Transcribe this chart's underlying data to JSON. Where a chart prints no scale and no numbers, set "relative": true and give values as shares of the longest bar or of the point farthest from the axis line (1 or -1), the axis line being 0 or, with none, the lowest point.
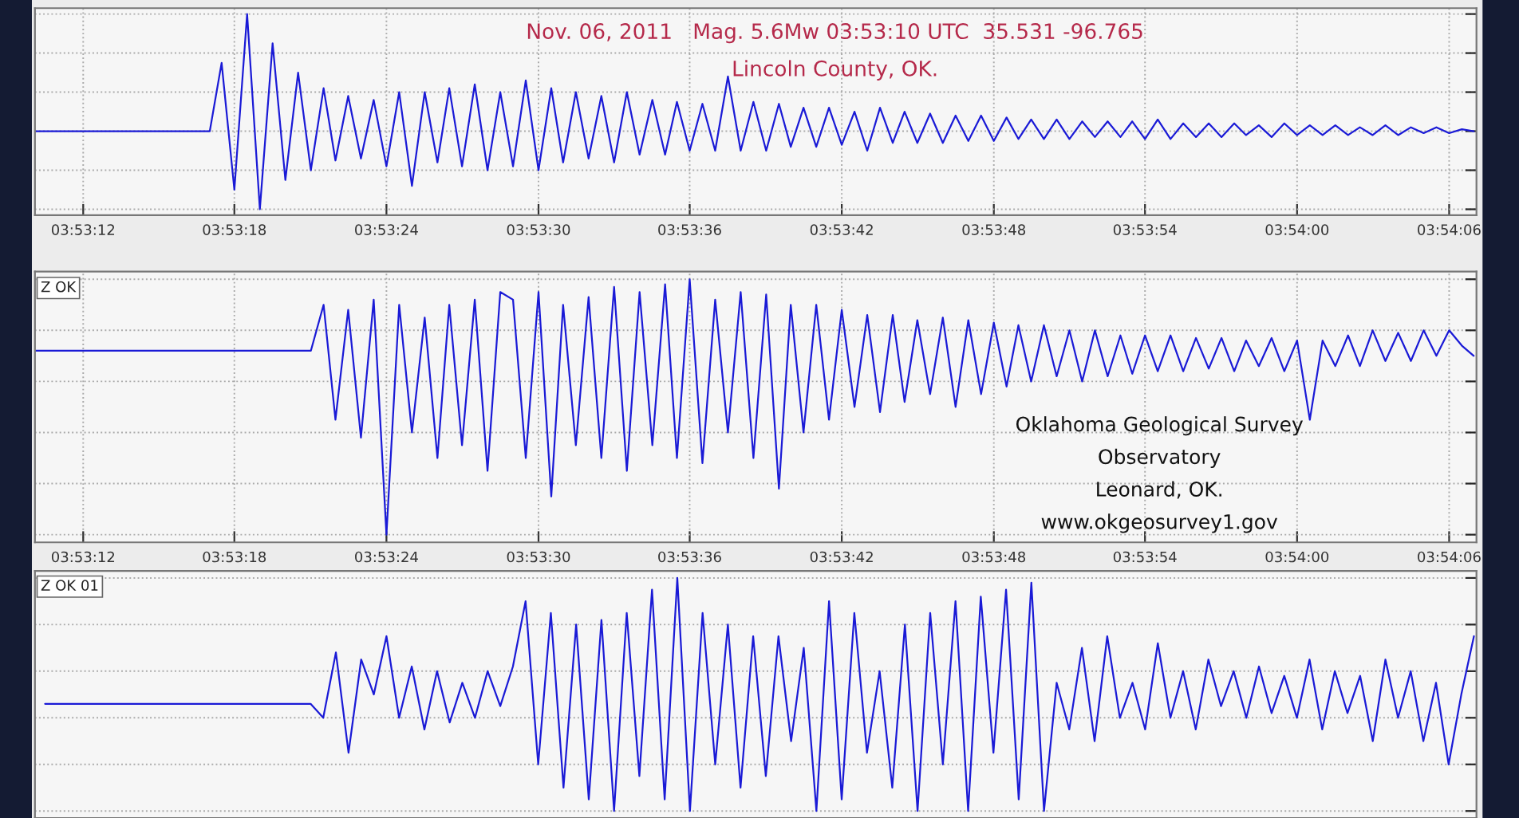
{
  "chart_data": [
    {
      "type": "line",
      "relative": true,
      "title": "Nov. 06, 2011   Mag. 5.6Mw 03:53:10 UTC  35.531 -96.765",
      "subtitle": "Lincoln County, OK.",
      "grid": true,
      "tick_labels": "x",
      "x": [
        3.88614,
        3.88806,
        3.88819,
        3.88833,
        3.88847,
        3.88861,
        3.88875,
        3.88889,
        3.88903,
        3.88917,
        3.88931,
        3.88944,
        3.88958,
        3.88972,
        3.88986,
        3.89,
        3.89014,
        3.89028,
        3.89042,
        3.89056,
        3.89069,
        3.89083,
        3.89097,
        3.89111,
        3.89125,
        3.89139,
        3.89153,
        3.89167,
        3.89181,
        3.89194,
        3.89208,
        3.89222,
        3.89236,
        3.8925,
        3.89264,
        3.89278,
        3.89292,
        3.89306,
        3.89319,
        3.89333,
        3.89347,
        3.89361,
        3.89375,
        3.89389,
        3.89403,
        3.89417,
        3.89431,
        3.89444,
        3.89458,
        3.89472,
        3.89486,
        3.895,
        3.89514,
        3.89528,
        3.89542,
        3.89556,
        3.89569,
        3.89583,
        3.89597,
        3.89611,
        3.89625,
        3.89639,
        3.89653,
        3.89667,
        3.89681,
        3.89694,
        3.89708,
        3.89722,
        3.89736,
        3.8975,
        3.89764,
        3.89778,
        3.89792,
        3.89806,
        3.89819,
        3.89833,
        3.89847,
        3.89861,
        3.89875,
        3.89889,
        3.89903,
        3.89917,
        3.89931,
        3.89944,
        3.89958,
        3.89972,
        3.89986,
        3.9,
        3.90014,
        3.90028,
        3.90042,
        3.90056,
        3.90069,
        3.90083,
        3.90097,
        3.90111,
        3.90125,
        3.90139,
        3.90153,
        3.90167,
        3.90181,
        3.90194
      ],
      "xlim": [
        3.88614,
        3.90197
      ],
      "xticks": [
        {
          "value": 3.88667,
          "label": "03:53:12"
        },
        {
          "value": 3.88833,
          "label": "03:53:18"
        },
        {
          "value": 3.89,
          "label": "03:53:24"
        },
        {
          "value": 3.89167,
          "label": "03:53:30"
        },
        {
          "value": 3.89333,
          "label": "03:53:36"
        },
        {
          "value": 3.895,
          "label": "03:53:42"
        },
        {
          "value": 3.89667,
          "label": "03:53:48"
        },
        {
          "value": 3.89833,
          "label": "03:53:54"
        },
        {
          "value": 3.9,
          "label": "03:54:00"
        },
        {
          "value": 3.90167,
          "label": "03:54:06"
        }
      ],
      "series": [
        {
          "color": "#1a1ad6",
          "values": [
            0.4,
            0.4,
            0.75,
            0.1,
            1.0,
            0.0,
            0.85,
            0.15,
            0.7,
            0.2,
            0.62,
            0.25,
            0.58,
            0.26,
            0.56,
            0.22,
            0.6,
            0.12,
            0.6,
            0.24,
            0.62,
            0.22,
            0.64,
            0.2,
            0.6,
            0.22,
            0.66,
            0.2,
            0.62,
            0.24,
            0.6,
            0.26,
            0.58,
            0.24,
            0.6,
            0.28,
            0.56,
            0.28,
            0.55,
            0.3,
            0.54,
            0.3,
            0.68,
            0.3,
            0.55,
            0.3,
            0.54,
            0.32,
            0.52,
            0.32,
            0.52,
            0.33,
            0.5,
            0.3,
            0.52,
            0.34,
            0.5,
            0.34,
            0.49,
            0.34,
            0.48,
            0.35,
            0.48,
            0.35,
            0.47,
            0.36,
            0.46,
            0.36,
            0.46,
            0.36,
            0.45,
            0.37,
            0.45,
            0.37,
            0.45,
            0.36,
            0.46,
            0.36,
            0.44,
            0.37,
            0.44,
            0.37,
            0.44,
            0.38,
            0.43,
            0.37,
            0.44,
            0.38,
            0.43,
            0.38,
            0.43,
            0.38,
            0.42,
            0.38,
            0.43,
            0.38,
            0.42,
            0.39,
            0.42,
            0.39,
            0.41,
            0.4
          ]
        }
      ]
    },
    {
      "type": "line",
      "relative": true,
      "grid": true,
      "tick_labels": "x",
      "annotations": [
        "Z OK",
        "Oklahoma Geological Survey",
        "Observatory",
        "Leonard, OK.",
        "www.okgeosurvey1.gov"
      ],
      "x": [
        3.88614,
        3.88806,
        3.88819,
        3.88833,
        3.88847,
        3.88861,
        3.88875,
        3.88889,
        3.88903,
        3.88917,
        3.88931,
        3.88944,
        3.88958,
        3.88972,
        3.88986,
        3.89,
        3.89014,
        3.89028,
        3.89042,
        3.89056,
        3.89069,
        3.89083,
        3.89097,
        3.89111,
        3.89125,
        3.89139,
        3.89153,
        3.89167,
        3.89181,
        3.89194,
        3.89208,
        3.89222,
        3.89236,
        3.8925,
        3.89264,
        3.89278,
        3.89292,
        3.89306,
        3.89319,
        3.89333,
        3.89347,
        3.89361,
        3.89375,
        3.89389,
        3.89403,
        3.89417,
        3.89431,
        3.89444,
        3.89458,
        3.89472,
        3.89486,
        3.895,
        3.89514,
        3.89528,
        3.89542,
        3.89556,
        3.89569,
        3.89583,
        3.89597,
        3.89611,
        3.89625,
        3.89639,
        3.89653,
        3.89667,
        3.89681,
        3.89694,
        3.89708,
        3.89722,
        3.89736,
        3.8975,
        3.89764,
        3.89778,
        3.89792,
        3.89806,
        3.89819,
        3.89833,
        3.89847,
        3.89861,
        3.89875,
        3.89889,
        3.89903,
        3.89917,
        3.89931,
        3.89944,
        3.89958,
        3.89972,
        3.89986,
        3.9,
        3.90014,
        3.90028,
        3.90042,
        3.90056,
        3.90069,
        3.90083,
        3.90097,
        3.90111,
        3.90125,
        3.90139,
        3.90153,
        3.90167,
        3.90181,
        3.90194
      ],
      "xlim": [
        3.88614,
        3.90197
      ],
      "xticks": [
        {
          "value": 3.88667,
          "label": "03:53:12"
        },
        {
          "value": 3.88833,
          "label": "03:53:18"
        },
        {
          "value": 3.89,
          "label": "03:53:24"
        },
        {
          "value": 3.89167,
          "label": "03:53:30"
        },
        {
          "value": 3.89333,
          "label": "03:53:36"
        },
        {
          "value": 3.895,
          "label": "03:53:42"
        },
        {
          "value": 3.89667,
          "label": "03:53:48"
        },
        {
          "value": 3.89833,
          "label": "03:53:54"
        },
        {
          "value": 3.9,
          "label": "03:54:00"
        },
        {
          "value": 3.90167,
          "label": "03:54:06"
        }
      ],
      "series": [
        {
          "color": "#1a1ad6",
          "values": [
            0.72,
            0.72,
            0.72,
            0.72,
            0.72,
            0.72,
            0.72,
            0.72,
            0.72,
            0.72,
            0.9,
            0.45,
            0.88,
            0.38,
            0.92,
            0.0,
            0.9,
            0.4,
            0.85,
            0.3,
            0.9,
            0.35,
            0.92,
            0.25,
            0.95,
            0.92,
            0.3,
            0.95,
            0.15,
            0.9,
            0.35,
            0.93,
            0.3,
            0.97,
            0.25,
            0.95,
            0.35,
            0.98,
            0.3,
            1.0,
            0.28,
            0.92,
            0.4,
            0.95,
            0.3,
            0.94,
            0.18,
            0.9,
            0.4,
            0.9,
            0.45,
            0.88,
            0.5,
            0.86,
            0.48,
            0.86,
            0.52,
            0.84,
            0.55,
            0.85,
            0.5,
            0.84,
            0.55,
            0.83,
            0.58,
            0.82,
            0.6,
            0.82,
            0.62,
            0.8,
            0.6,
            0.8,
            0.62,
            0.78,
            0.63,
            0.78,
            0.64,
            0.78,
            0.64,
            0.77,
            0.65,
            0.77,
            0.64,
            0.76,
            0.66,
            0.77,
            0.64,
            0.76,
            0.45,
            0.76,
            0.66,
            0.78,
            0.66,
            0.8,
            0.68,
            0.79,
            0.68,
            0.8,
            0.7,
            0.8,
            0.74,
            0.7
          ]
        }
      ]
    },
    {
      "type": "line",
      "relative": true,
      "grid": true,
      "tick_labels": false,
      "annotations": [
        "Z OK 01"
      ],
      "categories": [
        null,
        null,
        null,
        null,
        null,
        null,
        null,
        null,
        null,
        null,
        null,
        null,
        null,
        null,
        null,
        null,
        null,
        null,
        null,
        null,
        null,
        null,
        null,
        null,
        null,
        null,
        null,
        null,
        null,
        null,
        null,
        null,
        null,
        null,
        null,
        null,
        null,
        null,
        null,
        null,
        null,
        null,
        null,
        null,
        null,
        null,
        null,
        null,
        null,
        null,
        null,
        null,
        null,
        null,
        null,
        null,
        null,
        null,
        null,
        null,
        null,
        null,
        null,
        null,
        null,
        null,
        null,
        null,
        null,
        null,
        null,
        null,
        null,
        null,
        null,
        null,
        null,
        null,
        null,
        null,
        null,
        null,
        null,
        null,
        null,
        null,
        null,
        null,
        null,
        null,
        null,
        null,
        null,
        null,
        null,
        null,
        null,
        null,
        null,
        null,
        null,
        null,
        null,
        null,
        null,
        null,
        null,
        null,
        null,
        null,
        null,
        null,
        null,
        null
      ],
      "series": [
        {
          "color": "#1a1ad6",
          "values": [
            0.46,
            0.46,
            0.46,
            0.46,
            0.46,
            0.46,
            0.46,
            0.46,
            0.46,
            0.46,
            0.46,
            0.46,
            0.46,
            0.46,
            0.46,
            0.46,
            0.46,
            0.46,
            0.46,
            0.46,
            0.46,
            0.46,
            0.4,
            0.68,
            0.25,
            0.65,
            0.5,
            0.75,
            0.4,
            0.62,
            0.35,
            0.6,
            0.38,
            0.55,
            0.4,
            0.6,
            0.45,
            0.62,
            0.9,
            0.2,
            0.85,
            0.1,
            0.8,
            0.05,
            0.82,
            0.0,
            0.85,
            0.15,
            0.95,
            0.05,
            1.0,
            0.0,
            0.85,
            0.2,
            0.8,
            0.1,
            0.75,
            0.15,
            0.75,
            0.3,
            0.7,
            0.0,
            0.9,
            0.05,
            0.85,
            0.25,
            0.6,
            0.1,
            0.8,
            0.0,
            0.85,
            0.2,
            0.9,
            0.0,
            0.92,
            0.25,
            0.95,
            0.05,
            0.98,
            0.0,
            0.55,
            0.35,
            0.7,
            0.3,
            0.75,
            0.4,
            0.55,
            0.35,
            0.72,
            0.4,
            0.6,
            0.35,
            0.65,
            0.45,
            0.6,
            0.4,
            0.62,
            0.42,
            0.58,
            0.4,
            0.65,
            0.35,
            0.6,
            0.42,
            0.58,
            0.3,
            0.65,
            0.4,
            0.6,
            0.3,
            0.55,
            0.2,
            0.5,
            0.75
          ]
        }
      ]
    }
  ]
}
